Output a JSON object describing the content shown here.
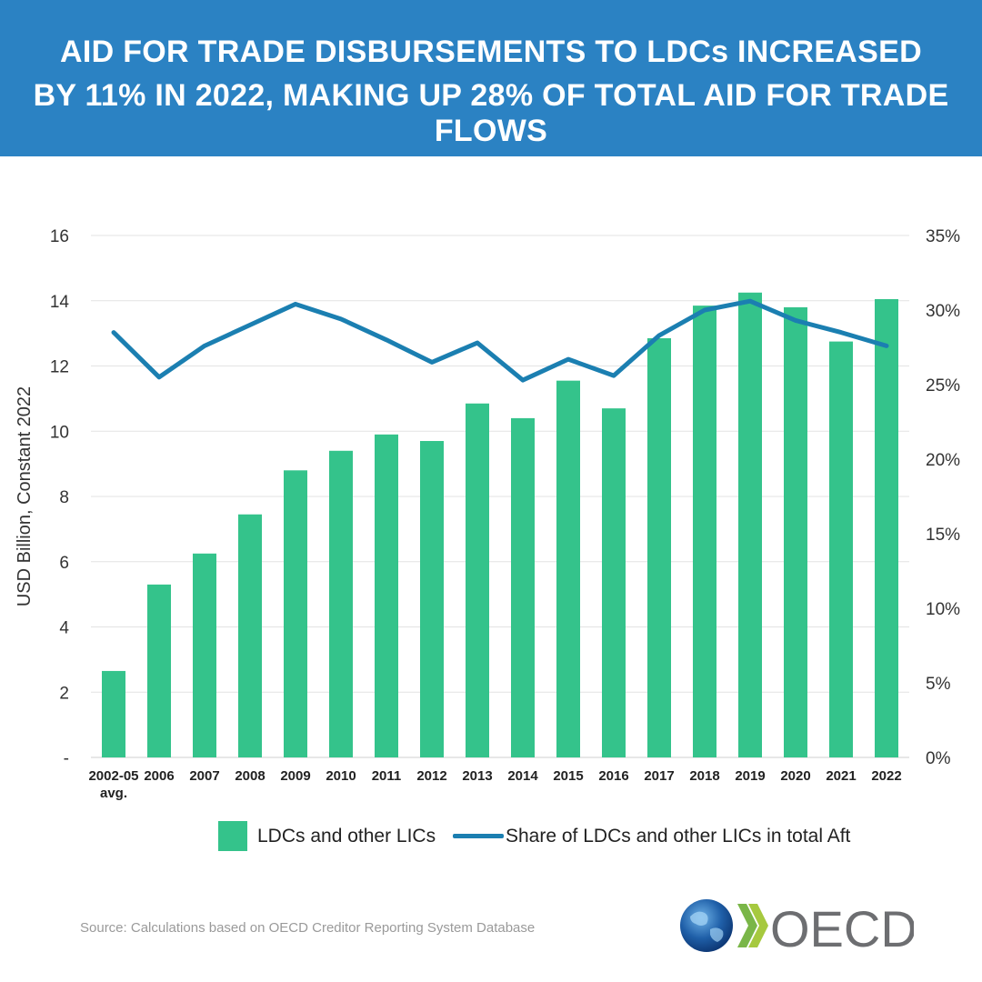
{
  "header": {
    "title_line1": "AID FOR TRADE DISBURSEMENTS TO LDCs INCREASED",
    "title_line2": "BY 11% IN 2022, MAKING UP 28% OF TOTAL AID FOR TRADE FLOWS",
    "background_color": "#2b82c3"
  },
  "chart_data": {
    "type": "bar",
    "categories": [
      "2002-05 avg.",
      "2006",
      "2007",
      "2008",
      "2009",
      "2010",
      "2011",
      "2012",
      "2013",
      "2014",
      "2015",
      "2016",
      "2017",
      "2018",
      "2019",
      "2020",
      "2021",
      "2022"
    ],
    "series": [
      {
        "name": "LDCs and other LICs",
        "type": "bar",
        "axis": "left",
        "color": "#34c38b",
        "values": [
          2.65,
          5.3,
          6.25,
          7.45,
          8.8,
          9.4,
          9.9,
          9.7,
          10.85,
          10.4,
          11.55,
          10.7,
          12.85,
          13.85,
          14.25,
          13.8,
          12.75,
          14.05
        ]
      },
      {
        "name": "Share of LDCs and other LICs in total Aft",
        "type": "line",
        "axis": "right",
        "color": "#1b7fb1",
        "values": [
          28.5,
          25.5,
          27.6,
          29.0,
          30.4,
          29.4,
          28.0,
          26.5,
          27.8,
          25.3,
          26.7,
          25.6,
          28.3,
          30.0,
          30.6,
          29.3,
          28.5,
          27.6
        ]
      }
    ],
    "ylabel": "USD Billion, Constant 2022",
    "ylim": [
      0,
      16
    ],
    "y_ticks": [
      "-",
      "2",
      "4",
      "6",
      "8",
      "10",
      "12",
      "14",
      "16"
    ],
    "y2lim": [
      0,
      35
    ],
    "y2_ticks": [
      "0%",
      "5%",
      "10%",
      "15%",
      "20%",
      "25%",
      "30%",
      "35%"
    ],
    "grid": true,
    "legend_position": "bottom"
  },
  "legend": {
    "bar_label": "LDCs and other LICs",
    "line_label": "Share of LDCs and other LICs in total Aft"
  },
  "source": "Source: Calculations based on OECD Creditor Reporting System Database",
  "logo": {
    "text": "OECD",
    "icon": "oecd-globe-logo"
  }
}
